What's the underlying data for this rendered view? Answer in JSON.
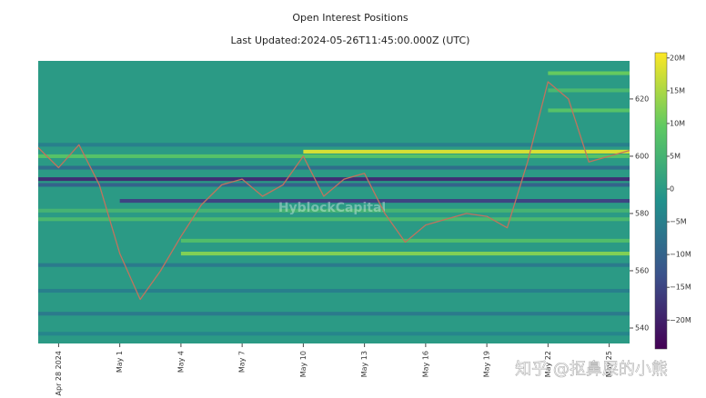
{
  "chart_data": {
    "type": "heatmap-line",
    "title": "Open Interest Positions",
    "subtitle": "Last Updated:2024-05-26T11:45:00.000Z  (UTC)",
    "watermark": "HyblockCapital",
    "overlay_text": "知乎 @抠鼻屎的小熊",
    "xlim": [
      "2024-04-27",
      "2024-05-26"
    ],
    "xticks": [
      {
        "value": "2024-04-28",
        "label": "Apr 28 2024"
      },
      {
        "value": "2024-05-01",
        "label": "May 1"
      },
      {
        "value": "2024-05-04",
        "label": "May 4"
      },
      {
        "value": "2024-05-07",
        "label": "May 7"
      },
      {
        "value": "2024-05-10",
        "label": "May 10"
      },
      {
        "value": "2024-05-13",
        "label": "May 13"
      },
      {
        "value": "2024-05-16",
        "label": "May 16"
      },
      {
        "value": "2024-05-19",
        "label": "May 19"
      },
      {
        "value": "2024-05-22",
        "label": "May 22"
      },
      {
        "value": "2024-05-25",
        "label": "May 25"
      }
    ],
    "ylim": [
      534.6,
      633.3
    ],
    "yticks": [
      540,
      560,
      580,
      600,
      620
    ],
    "clim": [
      -24400000,
      20800000
    ],
    "cticks": [
      {
        "value": 20000000,
        "label": "20M"
      },
      {
        "value": 15000000,
        "label": "15M"
      },
      {
        "value": 10000000,
        "label": "10M"
      },
      {
        "value": 5000000,
        "label": "5M"
      },
      {
        "value": 0,
        "label": "0"
      },
      {
        "value": -5000000,
        "label": "−5M"
      },
      {
        "value": -10000000,
        "label": "−10M"
      },
      {
        "value": -15000000,
        "label": "−15M"
      },
      {
        "value": -20000000,
        "label": "−20M"
      }
    ],
    "colorscale": [
      "#440154",
      "#3b528b",
      "#21918c",
      "#5ec962",
      "#fde725"
    ],
    "base_value": 0,
    "band_height": 1.3,
    "bands": [
      {
        "price": 629,
        "start": "2024-05-22",
        "value": 10000000
      },
      {
        "price": 623,
        "start": "2024-05-22",
        "value": 6000000
      },
      {
        "price": 616,
        "start": "2024-05-22",
        "value": 8000000
      },
      {
        "price": 604,
        "start": "2024-04-27",
        "value": -5000000
      },
      {
        "price": 601.6,
        "start": "2024-05-10",
        "value": 18000000
      },
      {
        "price": 600,
        "start": "2024-04-27",
        "value": 8000000
      },
      {
        "price": 596,
        "start": "2024-04-27",
        "value": -8000000
      },
      {
        "price": 592,
        "start": "2024-04-27",
        "value": -18000000
      },
      {
        "price": 590,
        "start": "2024-04-27",
        "value": -10000000
      },
      {
        "price": 584.4,
        "start": "2024-05-01",
        "value": -15000000
      },
      {
        "price": 581,
        "start": "2024-04-27",
        "value": 5000000
      },
      {
        "price": 578,
        "start": "2024-04-27",
        "value": 6000000
      },
      {
        "price": 570.5,
        "start": "2024-05-04",
        "value": 7000000
      },
      {
        "price": 566,
        "start": "2024-05-04",
        "value": 12000000
      },
      {
        "price": 562,
        "start": "2024-04-27",
        "value": -6000000
      },
      {
        "price": 553,
        "start": "2024-04-27",
        "value": -5000000
      },
      {
        "price": 545,
        "start": "2024-04-27",
        "value": -6000000
      },
      {
        "price": 538,
        "start": "2024-04-27",
        "value": -4000000
      }
    ],
    "series": [
      {
        "color": "#c0735e",
        "x": [
          "2024-04-27",
          "2024-04-28",
          "2024-04-29",
          "2024-04-30",
          "2024-05-01",
          "2024-05-02",
          "2024-05-03",
          "2024-05-04",
          "2024-05-05",
          "2024-05-06",
          "2024-05-07",
          "2024-05-08",
          "2024-05-09",
          "2024-05-10",
          "2024-05-11",
          "2024-05-12",
          "2024-05-13",
          "2024-05-14",
          "2024-05-15",
          "2024-05-16",
          "2024-05-17",
          "2024-05-18",
          "2024-05-19",
          "2024-05-20",
          "2024-05-21",
          "2024-05-22",
          "2024-05-23",
          "2024-05-24",
          "2024-05-25",
          "2024-05-26"
        ],
        "values": [
          603,
          596,
          604,
          590,
          566,
          550,
          560,
          572,
          583,
          590,
          592,
          586,
          590,
          600,
          586,
          592,
          594,
          580,
          570,
          576,
          578,
          580,
          579,
          575,
          598,
          626,
          620,
          598,
          600,
          602
        ]
      }
    ]
  }
}
